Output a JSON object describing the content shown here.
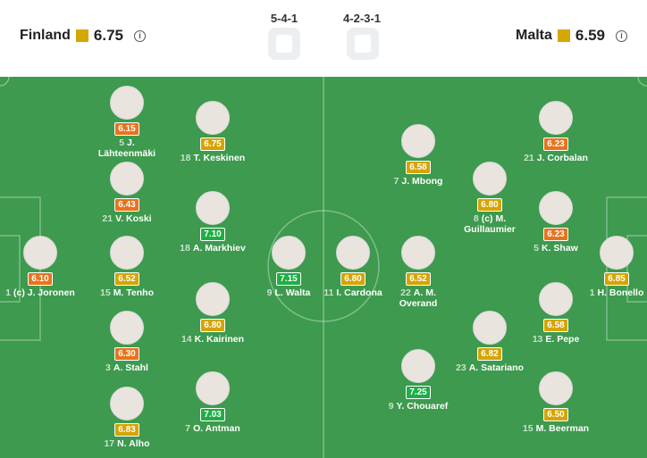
{
  "header": {
    "home": {
      "name": "Finland",
      "rating": "6.75",
      "formation": "5-4-1"
    },
    "away": {
      "name": "Malta",
      "rating": "6.59",
      "formation": "4-2-3-1"
    }
  },
  "home_players": [
    {
      "number": "1",
      "name": "(c) J. Joronen",
      "rating": "6.10"
    },
    {
      "number": "5",
      "name": "J. Lähteenmäki",
      "rating": "6.15"
    },
    {
      "number": "21",
      "name": "V. Koski",
      "rating": "6.43"
    },
    {
      "number": "15",
      "name": "M. Tenho",
      "rating": "6.52"
    },
    {
      "number": "3",
      "name": "A. Stahl",
      "rating": "6.30"
    },
    {
      "number": "17",
      "name": "N. Alho",
      "rating": "6.83"
    },
    {
      "number": "18",
      "name": "T. Keskinen",
      "rating": "6.75"
    },
    {
      "number": "18",
      "name": "A. Markhiev",
      "rating": "7.10"
    },
    {
      "number": "14",
      "name": "K. Kairinen",
      "rating": "6.80"
    },
    {
      "number": "7",
      "name": "O. Antman",
      "rating": "7.03"
    },
    {
      "number": "9",
      "name": "L. Walta",
      "rating": "7.15"
    }
  ],
  "away_players": [
    {
      "number": "1",
      "name": "H. Bonello",
      "rating": "6.85"
    },
    {
      "number": "21",
      "name": "J. Corbalan",
      "rating": "6.23"
    },
    {
      "number": "5",
      "name": "K. Shaw",
      "rating": "6.23"
    },
    {
      "number": "13",
      "name": "E. Pepe",
      "rating": "6.58"
    },
    {
      "number": "15",
      "name": "M. Beerman",
      "rating": "6.50"
    },
    {
      "number": "8",
      "name": "(c) M. Guillaumier",
      "rating": "6.80"
    },
    {
      "number": "23",
      "name": "A. Satariano",
      "rating": "6.82"
    },
    {
      "number": "7",
      "name": "J. Mbong",
      "rating": "6.58"
    },
    {
      "number": "22",
      "name": "A. M. Overand",
      "rating": "6.52"
    },
    {
      "number": "9",
      "name": "Y. Chouaref",
      "rating": "7.25"
    },
    {
      "number": "11",
      "name": "I. Cardona",
      "rating": "6.80"
    }
  ]
}
